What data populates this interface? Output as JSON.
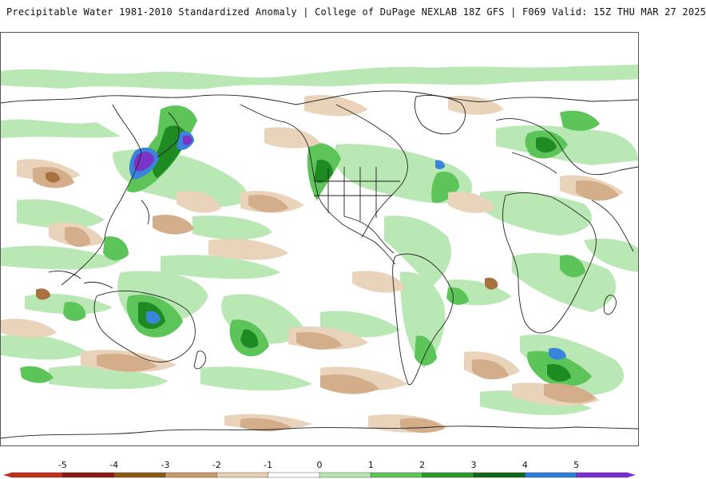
{
  "header": {
    "title": "Precipitable Water 1981-2010 Standardized Anomaly | College of DuPage NEXLAB  18Z GFS | F069 Valid: 15Z THU MAR 27 2025"
  },
  "colorbar": {
    "labels": [
      "-5",
      "-4",
      "-3",
      "-2",
      "-1",
      "0",
      "1",
      "2",
      "3",
      "4",
      "5"
    ],
    "colors": [
      "#c0301c",
      "#8b1a12",
      "#8a5a16",
      "#c89a6e",
      "#e6cfb3",
      "#ffffff",
      "#b8e6b3",
      "#5fc35a",
      "#2e9a2e",
      "#16661a",
      "#2e7fd9",
      "#7a2fd0"
    ]
  },
  "map": {
    "anomaly_colors": {
      "light_green": "#b9e8b4",
      "green": "#5cc459",
      "dark_green": "#1e8a22",
      "blue": "#3a84dc",
      "purple": "#7a34c8",
      "light_tan": "#e9d3ba",
      "tan": "#d4ae8a",
      "brown": "#a9713e"
    },
    "coastline_color": "#222222"
  }
}
